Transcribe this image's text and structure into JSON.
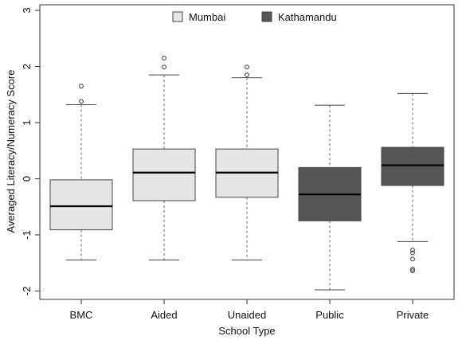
{
  "chart_data": {
    "type": "box",
    "xlabel": "School Type",
    "ylabel": "Averaged Literacy/Numeracy Score",
    "ylim": [
      -2.15,
      3.1
    ],
    "y_ticks": [
      -2,
      -1,
      0,
      1,
      2,
      3
    ],
    "y_tick_labels": [
      "-2",
      "-1",
      "0",
      "1",
      "2",
      "3"
    ],
    "grid": false,
    "legend": {
      "placement": "top-center",
      "entries": [
        {
          "label": "Mumbai",
          "color": "#e6e6e6"
        },
        {
          "label": "Kathamandu",
          "color": "#555555"
        }
      ]
    },
    "categories": [
      "BMC",
      "Aided",
      "Unaided",
      "Public",
      "Private"
    ],
    "boxes": [
      {
        "category": "BMC",
        "group": "Mumbai",
        "min": -1.45,
        "q1": -0.91,
        "median": -0.49,
        "q3": -0.02,
        "max": 1.32,
        "outliers": [
          1.38,
          1.65
        ]
      },
      {
        "category": "Aided",
        "group": "Mumbai",
        "min": -1.45,
        "q1": -0.39,
        "median": 0.11,
        "q3": 0.53,
        "max": 1.85,
        "outliers": [
          1.99,
          2.15
        ]
      },
      {
        "category": "Unaided",
        "group": "Mumbai",
        "min": -1.45,
        "q1": -0.33,
        "median": 0.11,
        "q3": 0.53,
        "max": 1.8,
        "outliers": [
          1.85,
          1.99
        ]
      },
      {
        "category": "Public",
        "group": "Kathamandu",
        "min": -1.98,
        "q1": -0.75,
        "median": -0.28,
        "q3": 0.2,
        "max": 1.31,
        "outliers": []
      },
      {
        "category": "Private",
        "group": "Kathamandu",
        "min": -1.12,
        "q1": -0.12,
        "median": 0.24,
        "q3": 0.56,
        "max": 1.52,
        "outliers": [
          -1.27,
          -1.32,
          -1.43,
          -1.61,
          -1.64
        ]
      }
    ]
  }
}
